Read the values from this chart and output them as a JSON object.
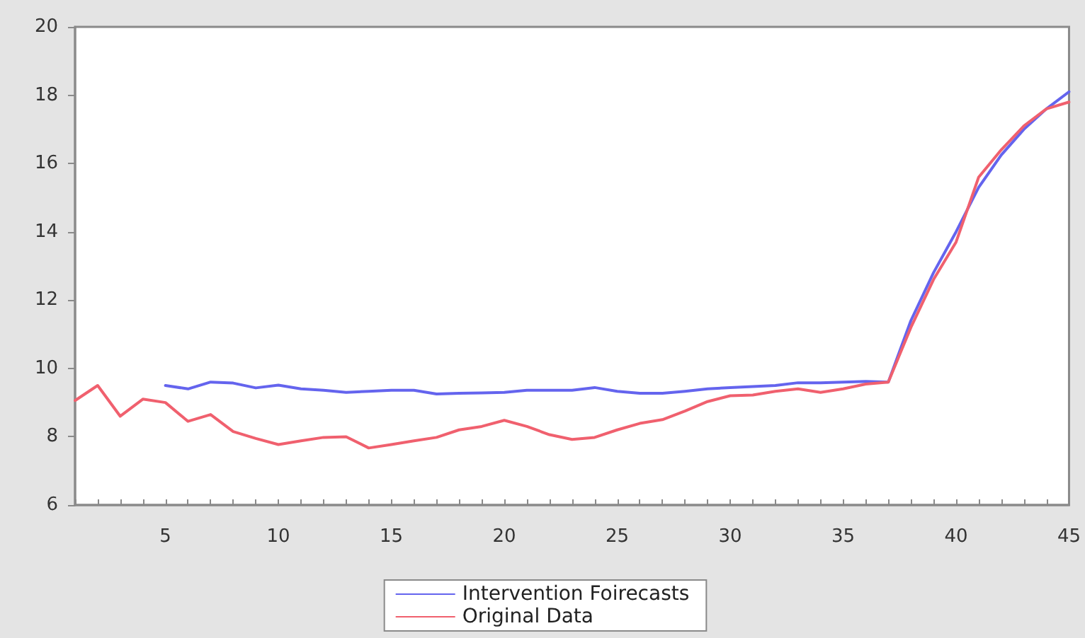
{
  "chart_data": {
    "type": "line",
    "legend": "bottom",
    "line_style": "solid",
    "x": [
      1,
      2,
      3,
      4,
      5,
      6,
      7,
      8,
      9,
      10,
      11,
      12,
      13,
      14,
      15,
      16,
      17,
      18,
      19,
      20,
      21,
      22,
      23,
      24,
      25,
      26,
      27,
      28,
      29,
      30,
      31,
      32,
      33,
      34,
      35,
      36,
      37,
      38,
      39,
      40,
      41,
      42,
      43,
      44,
      45
    ],
    "series": [
      {
        "name": "Intervention Foirecasts",
        "color": "#6464ee",
        "values": [
          null,
          null,
          null,
          null,
          9.5,
          9.4,
          9.6,
          9.57,
          9.43,
          9.51,
          9.4,
          9.36,
          9.3,
          9.33,
          9.36,
          9.36,
          9.25,
          9.27,
          9.28,
          9.3,
          9.36,
          9.36,
          9.36,
          9.44,
          9.33,
          9.27,
          9.27,
          9.33,
          9.4,
          9.44,
          9.47,
          9.5,
          9.58,
          9.58,
          9.6,
          9.62,
          9.6,
          11.4,
          12.8,
          14.0,
          15.3,
          16.25,
          17.0,
          17.6,
          18.1
        ]
      },
      {
        "name": "Original Data",
        "color": "#f0606e",
        "values": [
          9.06,
          9.5,
          8.6,
          9.1,
          9.0,
          8.45,
          8.65,
          8.15,
          7.95,
          7.77,
          7.88,
          7.98,
          8.0,
          7.67,
          7.77,
          7.88,
          7.98,
          8.2,
          8.3,
          8.48,
          8.3,
          8.06,
          7.92,
          7.98,
          8.2,
          8.39,
          8.5,
          8.75,
          9.03,
          9.2,
          9.22,
          9.33,
          9.4,
          9.3,
          9.4,
          9.54,
          9.6,
          11.2,
          12.6,
          13.7,
          15.6,
          16.4,
          17.1,
          17.6,
          17.8
        ]
      }
    ],
    "xlim": [
      1,
      45
    ],
    "xticks": [
      {
        "value": 1,
        "label": null
      },
      {
        "value": 2,
        "label": null
      },
      {
        "value": 3,
        "label": null
      },
      {
        "value": 4,
        "label": null
      },
      5,
      {
        "value": 6,
        "label": null
      },
      {
        "value": 7,
        "label": null
      },
      {
        "value": 8,
        "label": null
      },
      {
        "value": 9,
        "label": null
      },
      10,
      {
        "value": 11,
        "label": null
      },
      {
        "value": 12,
        "label": null
      },
      {
        "value": 13,
        "label": null
      },
      {
        "value": 14,
        "label": null
      },
      15,
      {
        "value": 16,
        "label": null
      },
      {
        "value": 17,
        "label": null
      },
      {
        "value": 18,
        "label": null
      },
      {
        "value": 19,
        "label": null
      },
      20,
      {
        "value": 21,
        "label": null
      },
      {
        "value": 22,
        "label": null
      },
      {
        "value": 23,
        "label": null
      },
      {
        "value": 24,
        "label": null
      },
      25,
      {
        "value": 26,
        "label": null
      },
      {
        "value": 27,
        "label": null
      },
      {
        "value": 28,
        "label": null
      },
      {
        "value": 29,
        "label": null
      },
      30,
      {
        "value": 31,
        "label": null
      },
      {
        "value": 32,
        "label": null
      },
      {
        "value": 33,
        "label": null
      },
      {
        "value": 34,
        "label": null
      },
      35,
      {
        "value": 36,
        "label": null
      },
      {
        "value": 37,
        "label": null
      },
      {
        "value": 38,
        "label": null
      },
      {
        "value": 39,
        "label": null
      },
      40,
      {
        "value": 41,
        "label": null
      },
      {
        "value": 42,
        "label": null
      },
      {
        "value": 43,
        "label": null
      },
      {
        "value": 44,
        "label": null
      },
      45
    ],
    "ylim": [
      6,
      20
    ],
    "yticks": [
      6,
      8,
      10,
      12,
      14,
      16,
      18,
      20
    ]
  }
}
